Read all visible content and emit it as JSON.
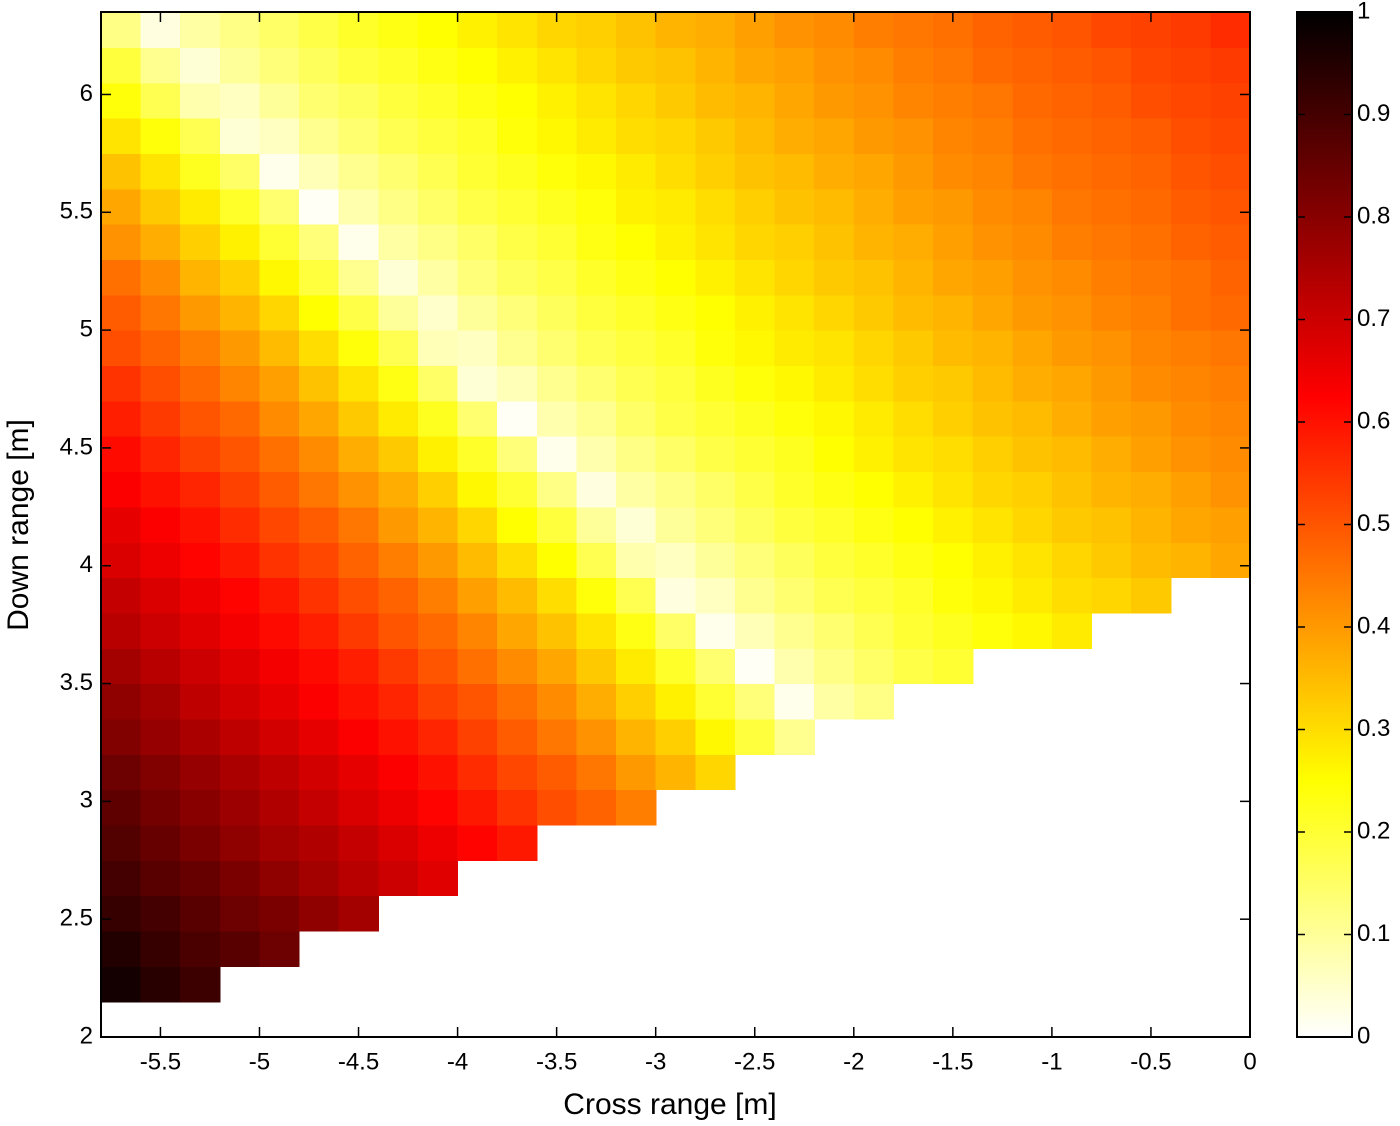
{
  "chart_data": {
    "type": "heatmap",
    "xlabel": "Cross range [m]",
    "ylabel": "Down range [m]",
    "x": [
      -5.7,
      -5.5,
      -5.3,
      -5.1,
      -4.9,
      -4.7,
      -4.5,
      -4.3,
      -4.1,
      -3.9,
      -3.7,
      -3.5,
      -3.3,
      -3.1,
      -2.9,
      -2.7,
      -2.5,
      -2.3,
      -2.1,
      -1.9,
      -1.7,
      -1.5,
      -1.3,
      -1.1,
      -0.9,
      -0.7,
      -0.5,
      -0.3,
      -0.1
    ],
    "y": [
      2.225,
      2.375,
      2.525,
      2.675,
      2.825,
      2.975,
      3.125,
      3.275,
      3.425,
      3.575,
      3.725,
      3.875,
      4.025,
      4.175,
      4.325,
      4.475,
      4.625,
      4.775,
      4.925,
      5.075,
      5.225,
      5.375,
      5.525,
      5.675,
      5.825,
      5.975,
      6.125,
      6.275
    ],
    "values": [
      [
        0.97,
        0.94,
        0.91,
        null,
        null,
        null,
        null,
        null,
        null,
        null,
        null,
        null,
        null,
        null,
        null,
        null,
        null,
        null,
        null,
        null,
        null,
        null,
        null,
        null,
        null,
        null,
        null,
        null,
        null
      ],
      [
        0.95,
        0.92,
        0.89,
        0.87,
        0.84,
        null,
        null,
        null,
        null,
        null,
        null,
        null,
        null,
        null,
        null,
        null,
        null,
        null,
        null,
        null,
        null,
        null,
        null,
        null,
        null,
        null,
        null,
        null,
        null
      ],
      [
        0.92,
        0.9,
        0.87,
        0.84,
        0.82,
        0.79,
        0.76,
        null,
        null,
        null,
        null,
        null,
        null,
        null,
        null,
        null,
        null,
        null,
        null,
        null,
        null,
        null,
        null,
        null,
        null,
        null,
        null,
        null,
        null
      ],
      [
        0.9,
        0.87,
        0.85,
        0.82,
        0.79,
        0.76,
        0.73,
        0.7,
        0.67,
        null,
        null,
        null,
        null,
        null,
        null,
        null,
        null,
        null,
        null,
        null,
        null,
        null,
        null,
        null,
        null,
        null,
        null,
        null,
        null
      ],
      [
        0.88,
        0.85,
        0.82,
        0.79,
        0.76,
        0.74,
        0.71,
        0.68,
        0.65,
        0.62,
        0.59,
        null,
        null,
        null,
        null,
        null,
        null,
        null,
        null,
        null,
        null,
        null,
        null,
        null,
        null,
        null,
        null,
        null,
        null
      ],
      [
        0.86,
        0.83,
        0.8,
        0.77,
        0.74,
        0.71,
        0.68,
        0.65,
        0.62,
        0.59,
        0.55,
        0.51,
        0.48,
        0.44,
        null,
        null,
        null,
        null,
        null,
        null,
        null,
        null,
        null,
        null,
        null,
        null,
        null,
        null,
        null
      ],
      [
        0.84,
        0.81,
        0.78,
        0.75,
        0.72,
        0.69,
        0.66,
        0.63,
        0.6,
        0.56,
        0.52,
        0.49,
        0.45,
        0.4,
        0.36,
        0.31,
        null,
        null,
        null,
        null,
        null,
        null,
        null,
        null,
        null,
        null,
        null,
        null,
        null
      ],
      [
        0.81,
        0.78,
        0.75,
        0.72,
        0.69,
        0.66,
        0.63,
        0.6,
        0.57,
        0.53,
        0.49,
        0.45,
        0.41,
        0.36,
        0.32,
        0.26,
        0.19,
        0.11,
        null,
        null,
        null,
        null,
        null,
        null,
        null,
        null,
        null,
        null,
        null
      ],
      [
        0.79,
        0.76,
        0.72,
        0.69,
        0.66,
        0.63,
        0.6,
        0.57,
        0.53,
        0.5,
        0.46,
        0.42,
        0.37,
        0.32,
        0.27,
        0.2,
        0.13,
        0.02,
        0.09,
        0.12,
        null,
        null,
        null,
        null,
        null,
        null,
        null,
        null,
        null
      ],
      [
        0.76,
        0.73,
        0.7,
        0.67,
        0.64,
        0.61,
        0.58,
        0.54,
        0.5,
        0.46,
        0.42,
        0.38,
        0.33,
        0.28,
        0.21,
        0.14,
        0.01,
        0.08,
        0.12,
        0.15,
        0.18,
        0.2,
        null,
        null,
        null,
        null,
        null,
        null,
        null
      ],
      [
        0.73,
        0.7,
        0.67,
        0.64,
        0.61,
        0.58,
        0.54,
        0.5,
        0.47,
        0.43,
        0.38,
        0.34,
        0.29,
        0.23,
        0.15,
        0.02,
        0.07,
        0.11,
        0.14,
        0.17,
        0.2,
        0.22,
        0.24,
        0.26,
        0.28,
        null,
        null,
        null,
        null
      ],
      [
        0.71,
        0.68,
        0.65,
        0.62,
        0.59,
        0.55,
        0.51,
        0.48,
        0.44,
        0.39,
        0.35,
        0.3,
        0.24,
        0.17,
        0.03,
        0.06,
        0.11,
        0.14,
        0.17,
        0.19,
        0.21,
        0.24,
        0.26,
        0.28,
        0.3,
        0.31,
        0.33,
        null,
        null
      ],
      [
        0.68,
        0.65,
        0.62,
        0.59,
        0.55,
        0.52,
        0.48,
        0.44,
        0.4,
        0.35,
        0.3,
        0.25,
        0.17,
        0.08,
        0.06,
        0.1,
        0.13,
        0.16,
        0.19,
        0.21,
        0.23,
        0.25,
        0.27,
        0.29,
        0.31,
        0.33,
        0.35,
        0.36,
        0.38
      ],
      [
        0.66,
        0.63,
        0.6,
        0.56,
        0.52,
        0.49,
        0.45,
        0.4,
        0.36,
        0.31,
        0.25,
        0.19,
        0.1,
        0.04,
        0.1,
        0.13,
        0.16,
        0.19,
        0.21,
        0.23,
        0.25,
        0.27,
        0.29,
        0.31,
        0.33,
        0.34,
        0.36,
        0.38,
        0.39
      ],
      [
        0.63,
        0.6,
        0.57,
        0.53,
        0.49,
        0.45,
        0.41,
        0.37,
        0.32,
        0.26,
        0.2,
        0.12,
        0.03,
        0.09,
        0.12,
        0.15,
        0.18,
        0.21,
        0.23,
        0.25,
        0.27,
        0.29,
        0.31,
        0.32,
        0.34,
        0.36,
        0.37,
        0.39,
        0.41
      ],
      [
        0.61,
        0.57,
        0.53,
        0.5,
        0.46,
        0.42,
        0.37,
        0.33,
        0.27,
        0.21,
        0.13,
        0.02,
        0.08,
        0.12,
        0.15,
        0.18,
        0.2,
        0.22,
        0.25,
        0.27,
        0.29,
        0.3,
        0.32,
        0.34,
        0.35,
        0.37,
        0.39,
        0.41,
        0.42
      ],
      [
        0.58,
        0.54,
        0.5,
        0.47,
        0.42,
        0.38,
        0.33,
        0.28,
        0.22,
        0.14,
        0.01,
        0.08,
        0.11,
        0.15,
        0.18,
        0.2,
        0.22,
        0.24,
        0.26,
        0.28,
        0.3,
        0.32,
        0.34,
        0.35,
        0.37,
        0.39,
        0.4,
        0.42,
        0.43
      ],
      [
        0.55,
        0.51,
        0.47,
        0.43,
        0.39,
        0.34,
        0.29,
        0.23,
        0.15,
        0.04,
        0.07,
        0.11,
        0.14,
        0.17,
        0.19,
        0.22,
        0.24,
        0.26,
        0.28,
        0.3,
        0.32,
        0.33,
        0.35,
        0.37,
        0.38,
        0.4,
        0.42,
        0.43,
        0.44
      ],
      [
        0.51,
        0.48,
        0.44,
        0.4,
        0.35,
        0.3,
        0.24,
        0.17,
        0.07,
        0.06,
        0.11,
        0.14,
        0.17,
        0.19,
        0.21,
        0.24,
        0.26,
        0.28,
        0.29,
        0.31,
        0.33,
        0.35,
        0.36,
        0.38,
        0.4,
        0.41,
        0.43,
        0.44,
        0.45
      ],
      [
        0.49,
        0.45,
        0.4,
        0.36,
        0.31,
        0.25,
        0.18,
        0.1,
        0.05,
        0.1,
        0.13,
        0.16,
        0.19,
        0.21,
        0.23,
        0.25,
        0.27,
        0.29,
        0.31,
        0.33,
        0.35,
        0.36,
        0.38,
        0.4,
        0.41,
        0.43,
        0.44,
        0.46,
        0.47
      ],
      [
        0.46,
        0.42,
        0.36,
        0.32,
        0.26,
        0.19,
        0.11,
        0.04,
        0.09,
        0.13,
        0.16,
        0.18,
        0.21,
        0.23,
        0.25,
        0.27,
        0.29,
        0.31,
        0.33,
        0.34,
        0.36,
        0.38,
        0.39,
        0.41,
        0.42,
        0.44,
        0.45,
        0.46,
        0.48
      ],
      [
        0.41,
        0.37,
        0.32,
        0.27,
        0.2,
        0.13,
        0.02,
        0.09,
        0.12,
        0.15,
        0.18,
        0.2,
        0.23,
        0.25,
        0.27,
        0.29,
        0.31,
        0.32,
        0.34,
        0.36,
        0.37,
        0.39,
        0.41,
        0.42,
        0.44,
        0.45,
        0.46,
        0.48,
        0.49
      ],
      [
        0.38,
        0.33,
        0.28,
        0.21,
        0.14,
        0.01,
        0.08,
        0.12,
        0.15,
        0.18,
        0.2,
        0.22,
        0.24,
        0.27,
        0.28,
        0.3,
        0.32,
        0.34,
        0.35,
        0.37,
        0.39,
        0.4,
        0.42,
        0.43,
        0.45,
        0.46,
        0.47,
        0.49,
        0.5
      ],
      [
        0.34,
        0.29,
        0.22,
        0.15,
        0.02,
        0.07,
        0.11,
        0.14,
        0.17,
        0.2,
        0.22,
        0.24,
        0.26,
        0.28,
        0.3,
        0.32,
        0.34,
        0.35,
        0.37,
        0.38,
        0.4,
        0.42,
        0.43,
        0.45,
        0.46,
        0.47,
        0.48,
        0.5,
        0.51
      ],
      [
        0.29,
        0.24,
        0.17,
        0.04,
        0.06,
        0.11,
        0.14,
        0.17,
        0.19,
        0.21,
        0.24,
        0.26,
        0.28,
        0.3,
        0.31,
        0.33,
        0.35,
        0.37,
        0.38,
        0.4,
        0.41,
        0.43,
        0.44,
        0.46,
        0.47,
        0.48,
        0.49,
        0.51,
        0.52
      ],
      [
        0.24,
        0.17,
        0.08,
        0.06,
        0.1,
        0.14,
        0.16,
        0.19,
        0.21,
        0.23,
        0.25,
        0.27,
        0.29,
        0.31,
        0.33,
        0.35,
        0.36,
        0.38,
        0.4,
        0.41,
        0.43,
        0.44,
        0.45,
        0.47,
        0.48,
        0.49,
        0.51,
        0.52,
        0.53
      ],
      [
        0.19,
        0.11,
        0.04,
        0.1,
        0.13,
        0.16,
        0.19,
        0.21,
        0.23,
        0.25,
        0.27,
        0.29,
        0.31,
        0.33,
        0.34,
        0.36,
        0.38,
        0.39,
        0.41,
        0.42,
        0.44,
        0.45,
        0.47,
        0.48,
        0.49,
        0.5,
        0.52,
        0.53,
        0.54
      ],
      [
        0.12,
        0.03,
        0.09,
        0.12,
        0.15,
        0.18,
        0.21,
        0.23,
        0.25,
        0.27,
        0.29,
        0.31,
        0.32,
        0.34,
        0.36,
        0.37,
        0.39,
        0.41,
        0.42,
        0.44,
        0.45,
        0.46,
        0.48,
        0.49,
        0.5,
        0.52,
        0.53,
        0.54,
        0.56
      ]
    ],
    "xlim": [
      -5.8,
      0
    ],
    "ylim": [
      2,
      6.35
    ],
    "xticks": [
      -5.5,
      -5,
      -4.5,
      -4,
      -3.5,
      -3,
      -2.5,
      -2,
      -1.5,
      -1,
      -0.5,
      0
    ],
    "yticks": [
      2,
      2.5,
      3,
      3.5,
      4,
      4.5,
      5,
      5.5,
      6
    ],
    "colormap": "hot_r",
    "colorbar": {
      "clim": [
        0,
        1
      ],
      "ticks": [
        0,
        0.1,
        0.2,
        0.3,
        0.4,
        0.5,
        0.6,
        0.7,
        0.8,
        0.9,
        1
      ]
    }
  }
}
